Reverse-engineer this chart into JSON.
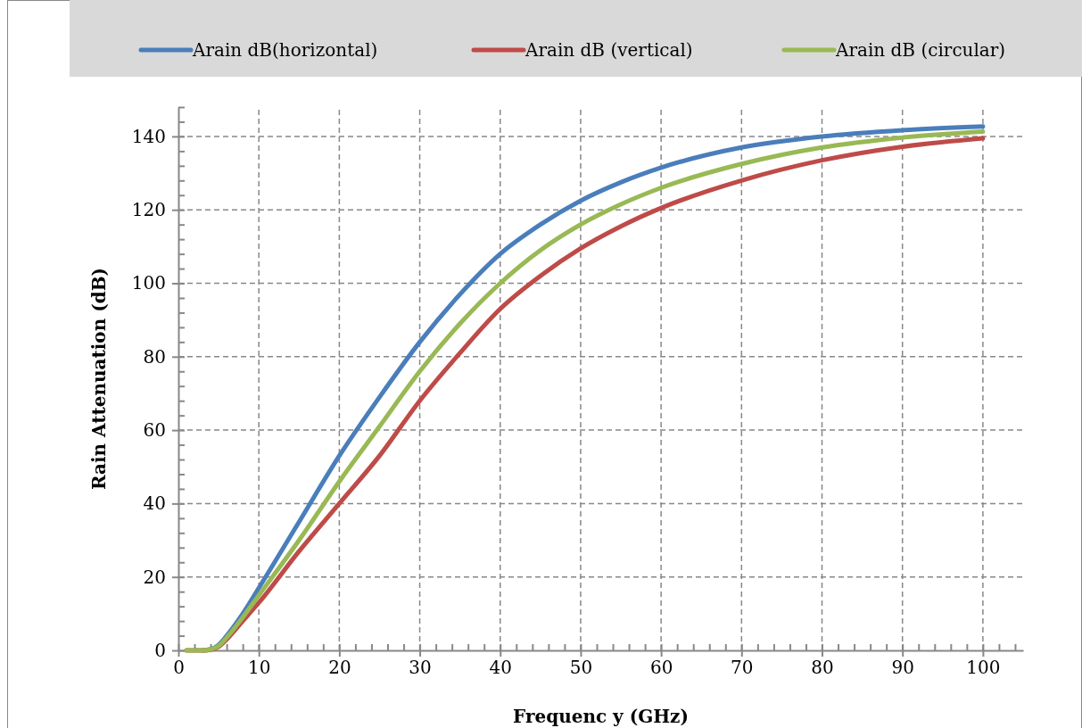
{
  "chart_data": {
    "type": "line",
    "xlabel": "Frequenc y (GHz)",
    "ylabel": "Rain Attenuation (dB)",
    "x": [
      1,
      2,
      3,
      4,
      5,
      6,
      8,
      10,
      15,
      20,
      25,
      30,
      35,
      40,
      45,
      50,
      55,
      60,
      70,
      80,
      90,
      100
    ],
    "series": [
      {
        "name": "Arain dB(horizontal)",
        "color": "#4a7ebb",
        "values": [
          null,
          null,
          0,
          0.3,
          1.5,
          4,
          10,
          17,
          35,
          53,
          69,
          84,
          97,
          108,
          116,
          122.5,
          127.5,
          131.5,
          137,
          140,
          141.7,
          142.7
        ]
      },
      {
        "name": "Arain dB (vertical)",
        "color": "#be4b48",
        "values": [
          0,
          0,
          0,
          0.2,
          1,
          3,
          8,
          13,
          27,
          40,
          53,
          68,
          81,
          93,
          102,
          109.5,
          115.5,
          120.5,
          128,
          133.5,
          137.2,
          139.5
        ]
      },
      {
        "name": "Arain dB (circular)",
        "color": "#98b954",
        "values": [
          0,
          0,
          0,
          0.3,
          1.2,
          3.5,
          9,
          15,
          30,
          46,
          61,
          76,
          89,
          100,
          109,
          116,
          121.5,
          126,
          132.5,
          137,
          139.7,
          141.3
        ]
      }
    ],
    "xlim": [
      0,
      105
    ],
    "ylim": [
      0,
      148
    ],
    "xticks": [
      0,
      {
        "value": 2,
        "label": null
      },
      {
        "value": 4,
        "label": null
      },
      {
        "value": 6,
        "label": null
      },
      {
        "value": 8,
        "label": null
      },
      10,
      {
        "value": 12,
        "label": null
      },
      {
        "value": 14,
        "label": null
      },
      {
        "value": 16,
        "label": null
      },
      {
        "value": 18,
        "label": null
      },
      20,
      {
        "value": 22,
        "label": null
      },
      {
        "value": 24,
        "label": null
      },
      {
        "value": 26,
        "label": null
      },
      {
        "value": 28,
        "label": null
      },
      30,
      {
        "value": 32,
        "label": null
      },
      {
        "value": 34,
        "label": null
      },
      {
        "value": 36,
        "label": null
      },
      {
        "value": 38,
        "label": null
      },
      40,
      {
        "value": 42,
        "label": null
      },
      {
        "value": 44,
        "label": null
      },
      {
        "value": 46,
        "label": null
      },
      {
        "value": 48,
        "label": null
      },
      50,
      {
        "value": 52,
        "label": null
      },
      {
        "value": 54,
        "label": null
      },
      {
        "value": 56,
        "label": null
      },
      {
        "value": 58,
        "label": null
      },
      60,
      {
        "value": 62,
        "label": null
      },
      {
        "value": 64,
        "label": null
      },
      {
        "value": 66,
        "label": null
      },
      {
        "value": 68,
        "label": null
      },
      70,
      {
        "value": 72,
        "label": null
      },
      {
        "value": 74,
        "label": null
      },
      {
        "value": 76,
        "label": null
      },
      {
        "value": 78,
        "label": null
      },
      80,
      {
        "value": 82,
        "label": null
      },
      {
        "value": 84,
        "label": null
      },
      {
        "value": 86,
        "label": null
      },
      {
        "value": 88,
        "label": null
      },
      90,
      {
        "value": 92,
        "label": null
      },
      {
        "value": 94,
        "label": null
      },
      {
        "value": 96,
        "label": null
      },
      {
        "value": 98,
        "label": null
      },
      100,
      {
        "value": 102,
        "label": null
      },
      {
        "value": 104,
        "label": null
      }
    ],
    "yticks": [
      0,
      {
        "value": 4,
        "label": null
      },
      {
        "value": 8,
        "label": null
      },
      {
        "value": 12,
        "label": null
      },
      {
        "value": 16,
        "label": null
      },
      20,
      {
        "value": 24,
        "label": null
      },
      {
        "value": 28,
        "label": null
      },
      {
        "value": 32,
        "label": null
      },
      {
        "value": 36,
        "label": null
      },
      40,
      {
        "value": 44,
        "label": null
      },
      {
        "value": 48,
        "label": null
      },
      {
        "value": 52,
        "label": null
      },
      {
        "value": 56,
        "label": null
      },
      60,
      {
        "value": 64,
        "label": null
      },
      {
        "value": 68,
        "label": null
      },
      {
        "value": 72,
        "label": null
      },
      {
        "value": 76,
        "label": null
      },
      80,
      {
        "value": 84,
        "label": null
      },
      {
        "value": 88,
        "label": null
      },
      {
        "value": 92,
        "label": null
      },
      {
        "value": 96,
        "label": null
      },
      100,
      {
        "value": 104,
        "label": null
      },
      {
        "value": 108,
        "label": null
      },
      {
        "value": 112,
        "label": null
      },
      {
        "value": 116,
        "label": null
      },
      120,
      {
        "value": 124,
        "label": null
      },
      {
        "value": 128,
        "label": null
      },
      {
        "value": 132,
        "label": null
      },
      {
        "value": 136,
        "label": null
      },
      140,
      {
        "value": 144,
        "label": null
      },
      {
        "value": 148,
        "label": null
      }
    ],
    "grid": true,
    "legend": "top",
    "marker": "none",
    "line_style": "solid"
  }
}
